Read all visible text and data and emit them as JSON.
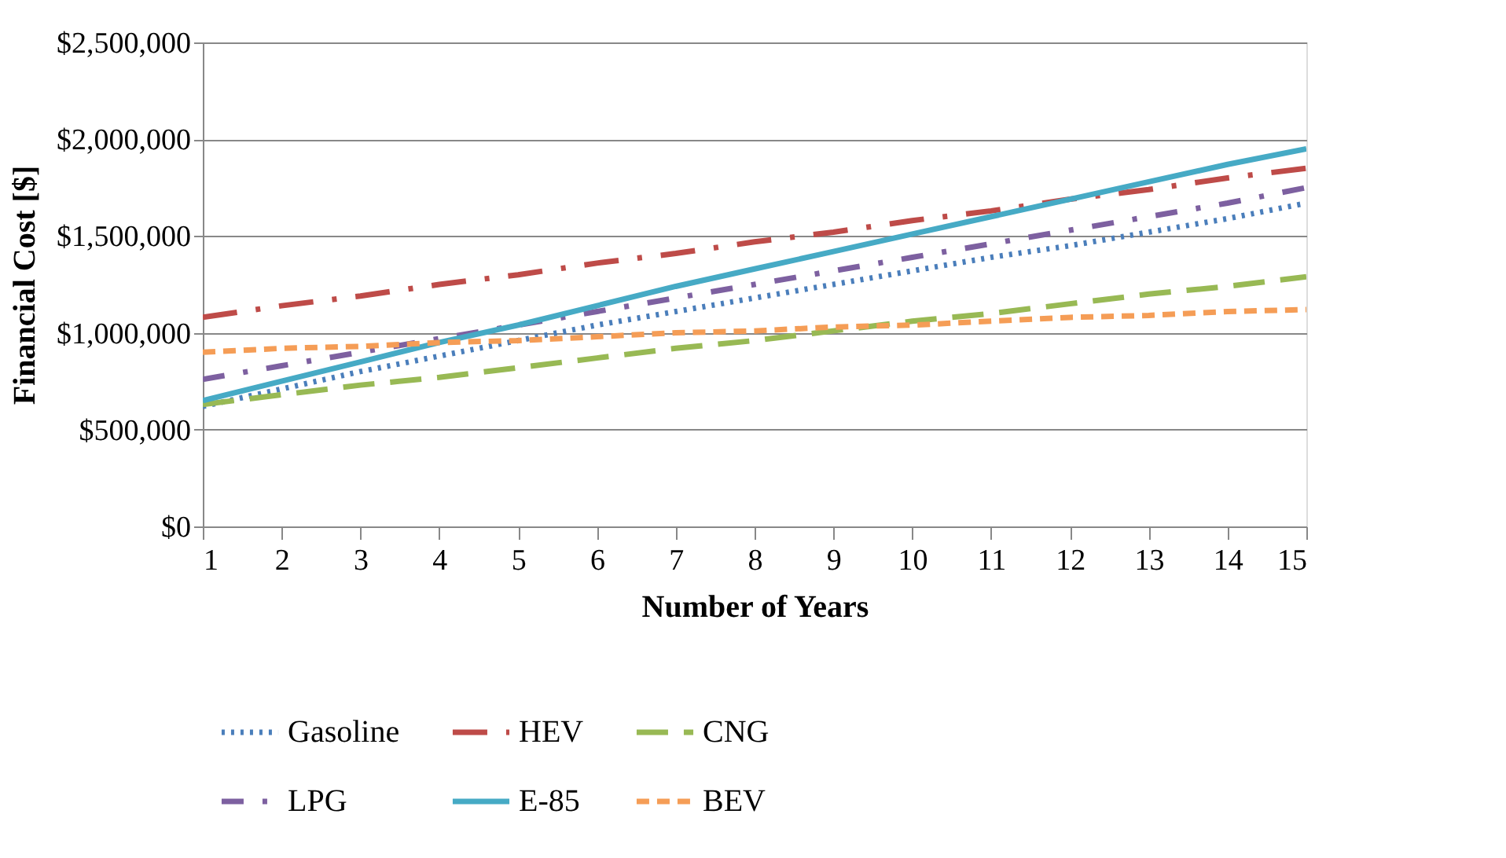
{
  "chart_data": {
    "type": "line",
    "xlabel": "Number of Years",
    "ylabel": "Financial Cost [$]",
    "x": [
      1,
      2,
      3,
      4,
      5,
      6,
      7,
      8,
      9,
      10,
      11,
      12,
      13,
      14,
      15
    ],
    "series": [
      {
        "name": "Gasoline",
        "color": "#4a7ebb",
        "line_style": "dotted",
        "values": [
          620000,
          710000,
          800000,
          880000,
          960000,
          1040000,
          1110000,
          1180000,
          1250000,
          1320000,
          1390000,
          1450000,
          1520000,
          1590000,
          1670000
        ]
      },
      {
        "name": "HEV",
        "color": "#be4b48",
        "line_style": "dashdot",
        "values": [
          1080000,
          1140000,
          1190000,
          1250000,
          1300000,
          1360000,
          1410000,
          1470000,
          1520000,
          1580000,
          1630000,
          1690000,
          1740000,
          1800000,
          1850000
        ]
      },
      {
        "name": "CNG",
        "color": "#98b954",
        "line_style": "longdash",
        "values": [
          630000,
          680000,
          730000,
          770000,
          820000,
          870000,
          920000,
          960000,
          1010000,
          1060000,
          1100000,
          1150000,
          1200000,
          1240000,
          1290000
        ]
      },
      {
        "name": "LPG",
        "color": "#7d60a0",
        "line_style": "longdashdot",
        "values": [
          760000,
          830000,
          900000,
          970000,
          1040000,
          1110000,
          1180000,
          1250000,
          1320000,
          1390000,
          1460000,
          1530000,
          1600000,
          1670000,
          1750000
        ]
      },
      {
        "name": "E-85",
        "color": "#46aac5",
        "line_style": "solid",
        "values": [
          650000,
          750000,
          850000,
          950000,
          1040000,
          1140000,
          1240000,
          1330000,
          1420000,
          1510000,
          1600000,
          1690000,
          1780000,
          1870000,
          1950000
        ]
      },
      {
        "name": "BEV",
        "color": "#f59d56",
        "line_style": "dashed",
        "values": [
          900000,
          920000,
          930000,
          950000,
          960000,
          980000,
          1000000,
          1010000,
          1030000,
          1040000,
          1060000,
          1080000,
          1090000,
          1110000,
          1120000
        ]
      }
    ],
    "xlim": [
      1,
      15
    ],
    "xticks": [
      1,
      2,
      3,
      4,
      5,
      6,
      7,
      8,
      9,
      10,
      11,
      12,
      13,
      14,
      15
    ],
    "ylim": [
      0,
      2500000
    ],
    "yticks": [
      {
        "value": 0,
        "label": "$0"
      },
      {
        "value": 500000,
        "label": "$500,000"
      },
      {
        "value": 1000000,
        "label": "$1,000,000"
      },
      {
        "value": 1500000,
        "label": "$1,500,000"
      },
      {
        "value": 2000000,
        "label": "$2,000,000"
      },
      {
        "value": 2500000,
        "label": "$2,500,000"
      }
    ],
    "grid": "y",
    "legend": "bottom",
    "marker": "none"
  }
}
